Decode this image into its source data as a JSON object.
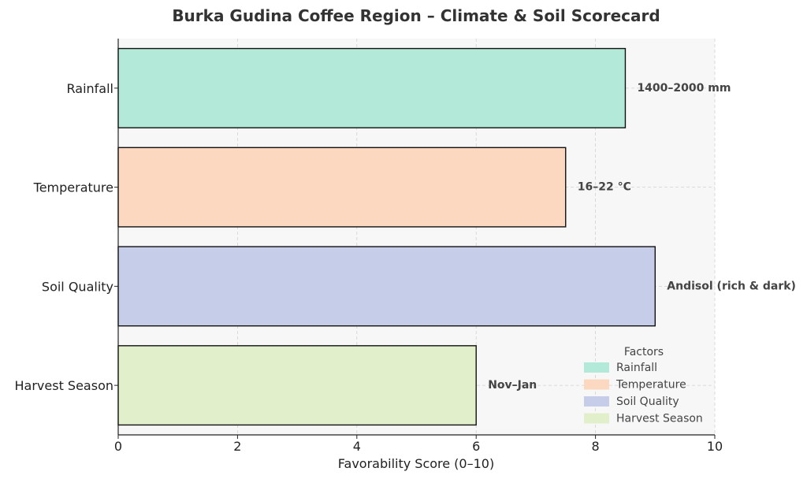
{
  "chart_data": {
    "type": "bar",
    "orientation": "horizontal",
    "title": "Burka Gudina Coffee Region – Climate & Soil Scorecard",
    "xlabel": "Favorability Score (0–10)",
    "ylabel": "",
    "xlim": [
      0,
      10
    ],
    "xticks": [
      0,
      2,
      4,
      6,
      8,
      10
    ],
    "grid": true,
    "categories": [
      "Rainfall",
      "Temperature",
      "Soil Quality",
      "Harvest Season"
    ],
    "values": [
      8.5,
      7.5,
      9.0,
      6.0
    ],
    "data_labels": [
      "1400–2000 mm",
      "16–22 °C",
      "Andisol (rich & dark)",
      "Nov–Jan"
    ],
    "colors": [
      "#b3e9d8",
      "#fdd8c0",
      "#c6cde9",
      "#e2efcb"
    ],
    "legend": {
      "title": "Factors",
      "position": "lower-right",
      "entries": [
        "Rainfall",
        "Temperature",
        "Soil Quality",
        "Harvest Season"
      ]
    }
  }
}
